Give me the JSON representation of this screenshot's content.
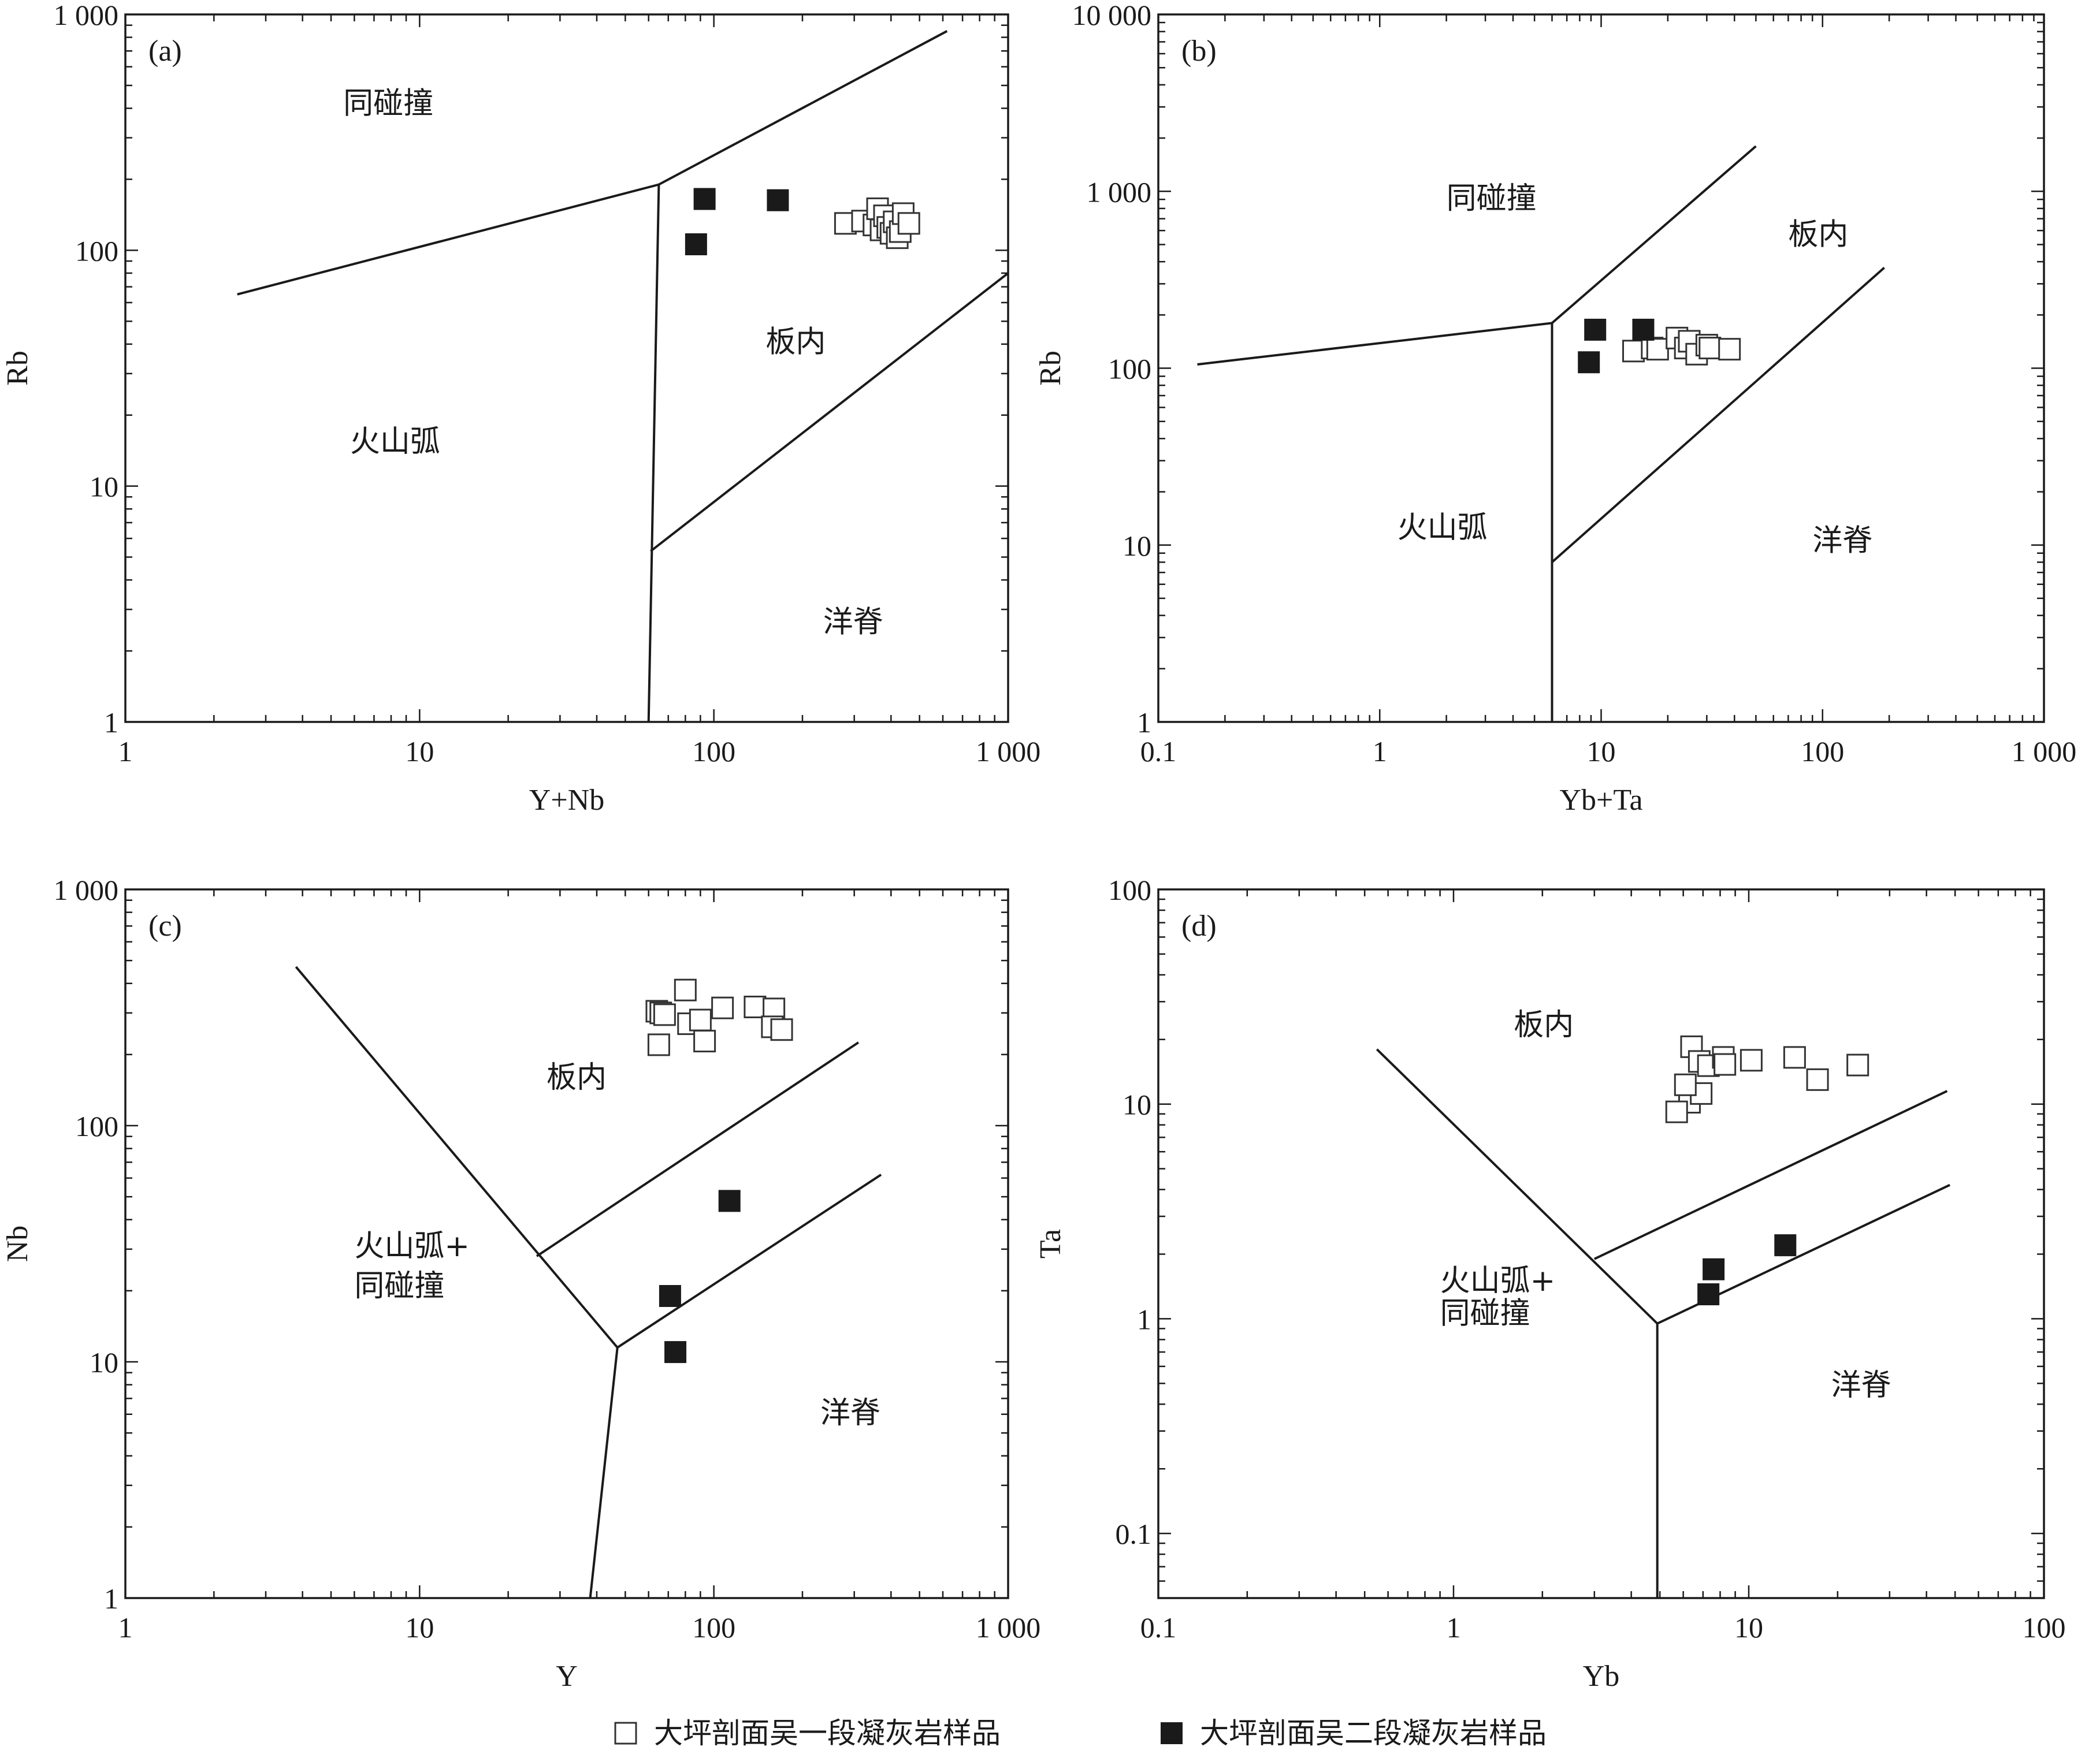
{
  "legend": {
    "series1_label": "大坪剖面吴一段凝灰岩样品",
    "series2_label": "大坪剖面吴二段凝灰岩样品"
  },
  "colors": {
    "ink": "#1a1a1a",
    "open_fill": "#ffffff"
  },
  "chart_data": [
    {
      "type": "scatter",
      "panel": "(a)",
      "xlabel": "Y+Nb",
      "ylabel": "Rb",
      "x_scale": "log",
      "y_scale": "log",
      "xlim": [
        1,
        1000
      ],
      "ylim": [
        1,
        1000
      ],
      "x_ticks": [
        1,
        10,
        100,
        1000
      ],
      "x_tick_labels": [
        "1",
        "10",
        "100",
        "1 000"
      ],
      "y_ticks": [
        1,
        10,
        100,
        1000
      ],
      "y_tick_labels": [
        "1",
        "10",
        "100",
        "1 000"
      ],
      "boundaries": [
        [
          [
            2.4,
            65
          ],
          [
            65,
            190
          ],
          [
            620,
            850
          ]
        ],
        [
          [
            65,
            190
          ],
          [
            60,
            1
          ]
        ],
        [
          [
            61,
            5.3
          ],
          [
            1000,
            80
          ]
        ]
      ],
      "field_labels": [
        {
          "text": "同碰撞",
          "x": 5.5,
          "y": 380
        },
        {
          "text": "板内",
          "x": 150,
          "y": 37
        },
        {
          "text": "火山弧",
          "x": 5.8,
          "y": 14
        },
        {
          "text": "洋脊",
          "x": 235,
          "y": 2.4
        }
      ],
      "series": [
        {
          "name": "大坪剖面吴一段凝灰岩样品",
          "marker": "open-square",
          "x": [
            280,
            320,
            350,
            360,
            370,
            380,
            390,
            400,
            410,
            420,
            430,
            440,
            460
          ],
          "y": [
            130,
            133,
            128,
            150,
            122,
            140,
            125,
            118,
            132,
            113,
            120,
            143,
            130
          ]
        },
        {
          "name": "大坪剖面吴二段凝灰岩样品",
          "marker": "filled-square",
          "x": [
            93,
            165,
            87
          ],
          "y": [
            165,
            163,
            106
          ]
        }
      ]
    },
    {
      "type": "scatter",
      "panel": "(b)",
      "xlabel": "Yb+Ta",
      "ylabel": "Rb",
      "x_scale": "log",
      "y_scale": "log",
      "xlim": [
        0.1,
        1000
      ],
      "ylim": [
        1,
        10000
      ],
      "x_ticks": [
        0.1,
        1,
        10,
        100,
        1000
      ],
      "x_tick_labels": [
        "0.1",
        "1",
        "10",
        "100",
        "1 000"
      ],
      "y_ticks": [
        1,
        10,
        100,
        1000,
        10000
      ],
      "y_tick_labels": [
        "1",
        "10",
        "100",
        "1 000",
        "10 000"
      ],
      "boundaries": [
        [
          [
            0.15,
            105
          ],
          [
            6,
            180
          ],
          [
            50,
            1800
          ]
        ],
        [
          [
            6,
            180
          ],
          [
            6,
            1
          ]
        ],
        [
          [
            6,
            8
          ],
          [
            190,
            370
          ]
        ]
      ],
      "field_labels": [
        {
          "text": "同碰撞",
          "x": 2,
          "y": 800
        },
        {
          "text": "板内",
          "x": 70,
          "y": 500
        },
        {
          "text": "火山弧",
          "x": 1.2,
          "y": 11
        },
        {
          "text": "洋脊",
          "x": 90,
          "y": 9.3
        }
      ],
      "series": [
        {
          "name": "大坪剖面吴一段凝灰岩样品",
          "marker": "open-square",
          "x": [
            14,
            17,
            18,
            22,
            24,
            25,
            27,
            30,
            31,
            38
          ],
          "y": [
            125,
            130,
            128,
            148,
            130,
            142,
            120,
            135,
            130,
            128
          ]
        },
        {
          "name": "大坪剖面吴二段凝灰岩样品",
          "marker": "filled-square",
          "x": [
            9.4,
            15.5,
            8.8
          ],
          "y": [
            165,
            165,
            108
          ]
        }
      ]
    },
    {
      "type": "scatter",
      "panel": "(c)",
      "xlabel": "Y",
      "ylabel": "Nb",
      "x_scale": "log",
      "y_scale": "log",
      "xlim": [
        1,
        1000
      ],
      "ylim": [
        1,
        1000
      ],
      "x_ticks": [
        1,
        10,
        100,
        1000
      ],
      "x_tick_labels": [
        "1",
        "10",
        "100",
        "1 000"
      ],
      "y_ticks": [
        1,
        10,
        100,
        1000
      ],
      "y_tick_labels": [
        "1",
        "10",
        "100",
        "1 000"
      ],
      "boundaries": [
        [
          [
            3.8,
            470
          ],
          [
            47,
            11.5
          ],
          [
            38,
            1
          ]
        ],
        [
          [
            47,
            11.5
          ],
          [
            370,
            62
          ]
        ],
        [
          [
            25,
            28
          ],
          [
            310,
            225
          ]
        ]
      ],
      "field_labels": [
        {
          "text": "板内",
          "x": 27,
          "y": 145
        },
        {
          "text": "火山弧+",
          "x": 6,
          "y": 28
        },
        {
          "text": "同碰撞",
          "x": 6,
          "y": 19
        },
        {
          "text": "洋脊",
          "x": 230,
          "y": 5.5
        }
      ],
      "series": [
        {
          "name": "大坪剖面吴一段凝灰岩样品",
          "marker": "open-square",
          "x": [
            64,
            66,
            68,
            65,
            80,
            82,
            90,
            93,
            107,
            138,
            160,
            158,
            170
          ],
          "y": [
            305,
            300,
            295,
            220,
            375,
            270,
            280,
            228,
            315,
            318,
            312,
            262,
            255
          ]
        },
        {
          "name": "大坪剖面吴二段凝灰岩样品",
          "marker": "filled-square",
          "x": [
            113,
            71,
            74
          ],
          "y": [
            48,
            19,
            11
          ]
        }
      ]
    },
    {
      "type": "scatter",
      "panel": "(d)",
      "xlabel": "Yb",
      "ylabel": "Ta",
      "x_scale": "log",
      "y_scale": "log",
      "xlim": [
        0.1,
        100
      ],
      "ylim": [
        0.05,
        100
      ],
      "x_ticks": [
        0.1,
        1,
        10,
        100
      ],
      "x_tick_labels": [
        "0.1",
        "1",
        "10",
        "100"
      ],
      "y_ticks": [
        0.1,
        1,
        10,
        100
      ],
      "y_tick_labels": [
        "0.1",
        "1",
        "10",
        "100"
      ],
      "boundaries": [
        [
          [
            0.55,
            18
          ],
          [
            4.9,
            0.95
          ],
          [
            4.9,
            0.05
          ]
        ],
        [
          [
            4.9,
            0.95
          ],
          [
            48,
            4.2
          ]
        ],
        [
          [
            3,
            1.9
          ],
          [
            47,
            11.5
          ]
        ]
      ],
      "field_labels": [
        {
          "text": "板内",
          "x": 1.6,
          "y": 21
        },
        {
          "text": "火山弧+",
          "x": 0.9,
          "y": 1.35
        },
        {
          "text": "同碰撞",
          "x": 0.9,
          "y": 0.95
        },
        {
          "text": "洋脊",
          "x": 19,
          "y": 0.44
        }
      ],
      "series": [
        {
          "name": "大坪剖面吴一段凝灰岩样品",
          "marker": "open-square",
          "x": [
            6.4,
            6.8,
            7.3,
            8.2,
            8.3,
            10.2,
            14.3,
            17.1,
            23.4,
            6.3,
            6.9,
            6.1,
            5.7
          ],
          "y": [
            18.5,
            15.8,
            15.1,
            16.5,
            15.3,
            16,
            16.5,
            13,
            15.2,
            10.2,
            11.2,
            12.3,
            9.2
          ]
        },
        {
          "name": "大坪剖面吴二段凝灰岩样品",
          "marker": "filled-square",
          "x": [
            7.6,
            7.3,
            13.3
          ],
          "y": [
            1.7,
            1.3,
            2.2
          ]
        }
      ]
    }
  ]
}
